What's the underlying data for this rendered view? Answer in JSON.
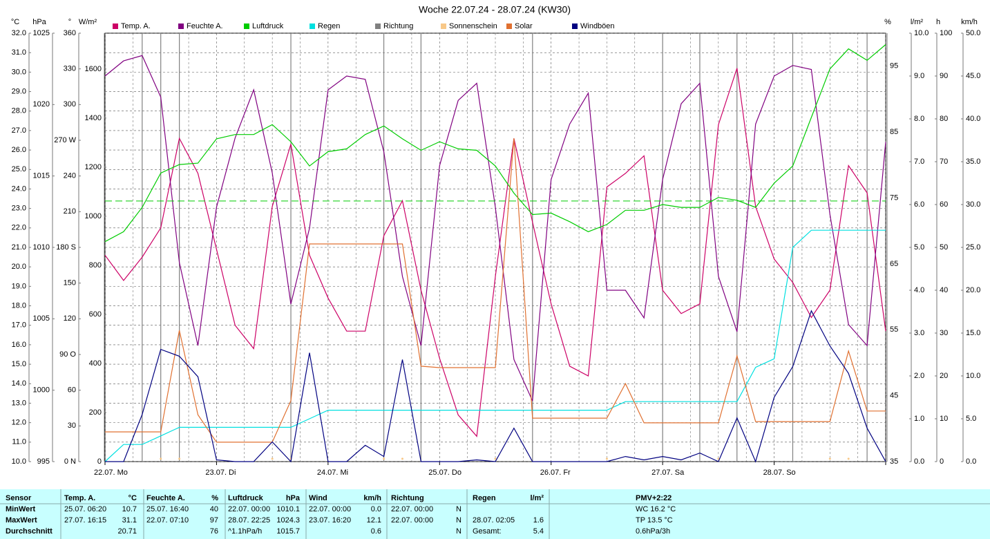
{
  "chart_data": {
    "type": "line",
    "title": "Woche 22.07.24 - 28.07.24 (KW30)",
    "xlim": [
      0,
      168
    ],
    "xticks": [
      {
        "value": 0,
        "label": "22.07. Mo"
      },
      {
        "value": 24,
        "label": "23.07. Di"
      },
      {
        "value": 48,
        "label": "24.07. Mi"
      },
      {
        "value": 72,
        "label": "25.07. Do"
      },
      {
        "value": 96,
        "label": "26.07. Fr"
      },
      {
        "value": 120,
        "label": "27.07. Sa"
      },
      {
        "value": 144,
        "label": "28.07. So"
      },
      168
    ],
    "x": [
      0,
      4,
      8,
      12,
      16,
      20,
      24,
      28,
      32,
      36,
      40,
      44,
      48,
      52,
      56,
      60,
      64,
      68,
      72,
      76,
      80,
      84,
      88,
      92,
      96,
      100,
      104,
      108,
      112,
      116,
      120,
      124,
      128,
      132,
      136,
      140,
      144,
      148,
      152,
      156,
      160,
      164,
      168
    ],
    "grid": true,
    "axes": {
      "temp": {
        "unit": "°C",
        "color": "#cc0066",
        "lim": [
          10,
          32
        ],
        "ticks": [
          {
            "value": 10,
            "label": "10.0"
          },
          {
            "value": 11,
            "label": "11.0"
          },
          {
            "value": 12,
            "label": "12.0"
          },
          {
            "value": 13,
            "label": "13.0"
          },
          {
            "value": 14,
            "label": "14.0"
          },
          {
            "value": 15,
            "label": "15.0"
          },
          {
            "value": 16,
            "label": "16.0"
          },
          {
            "value": 17,
            "label": "17.0"
          },
          {
            "value": 18,
            "label": "18.0"
          },
          {
            "value": 19,
            "label": "19.0"
          },
          {
            "value": 20,
            "label": "20.0"
          },
          {
            "value": 21,
            "label": "21.0"
          },
          {
            "value": 22,
            "label": "22.0"
          },
          {
            "value": 23,
            "label": "23.0"
          },
          {
            "value": 24,
            "label": "24.0"
          },
          {
            "value": 25,
            "label": "25.0"
          },
          {
            "value": 26,
            "label": "26.0"
          },
          {
            "value": 27,
            "label": "27.0"
          },
          {
            "value": 28,
            "label": "28.0"
          },
          {
            "value": 29,
            "label": "29.0"
          },
          {
            "value": 30,
            "label": "30.0"
          },
          {
            "value": 31,
            "label": "31.0"
          },
          {
            "value": 32,
            "label": "32.0"
          }
        ]
      },
      "pressure": {
        "unit": "hPa",
        "color": "#00a800",
        "lim": [
          995,
          1025
        ],
        "ticks": [
          995,
          1000,
          1005,
          1010,
          1015,
          1020,
          1025
        ]
      },
      "direction": {
        "unit": "°",
        "color": "#555555",
        "lim": [
          0,
          360
        ],
        "ticks": [
          {
            "value": 0,
            "label": "0 N"
          },
          30,
          60,
          {
            "value": 90,
            "label": "90 O"
          },
          120,
          150,
          {
            "value": 180,
            "label": "180 S"
          },
          210,
          240,
          {
            "value": 270,
            "label": "270 W"
          },
          300,
          330,
          360
        ]
      },
      "solar": {
        "unit": "W/m²",
        "color": "#e07030",
        "lim": [
          0,
          1746
        ],
        "ticks": [
          0,
          200,
          400,
          600,
          800,
          1000,
          1200,
          1400,
          1600
        ]
      },
      "humidity": {
        "unit": "%",
        "color": "#800080",
        "lim": [
          35,
          100
        ],
        "ticks": [
          35,
          45,
          55,
          65,
          75,
          85,
          95
        ]
      },
      "rain": {
        "unit": "l/m²",
        "color": "#00c8c8",
        "lim": [
          0,
          10
        ],
        "ticks": [
          {
            "value": 0,
            "label": "0.0"
          },
          {
            "value": 1,
            "label": "1.0"
          },
          {
            "value": 2,
            "label": "2.0"
          },
          {
            "value": 3,
            "label": "3.0"
          },
          {
            "value": 4,
            "label": "4.0"
          },
          {
            "value": 5,
            "label": "5.0"
          },
          {
            "value": 6,
            "label": "6.0"
          },
          {
            "value": 7,
            "label": "7.0"
          },
          {
            "value": 8,
            "label": "8.0"
          },
          {
            "value": 9,
            "label": "9.0"
          },
          {
            "value": 10,
            "label": "10.0"
          }
        ]
      },
      "sun": {
        "unit": "h",
        "color": "#f8c888",
        "lim": [
          0,
          100
        ],
        "ticks": [
          0,
          10,
          20,
          30,
          40,
          50,
          60,
          70,
          80,
          90,
          100
        ]
      },
      "wind": {
        "unit": "km/h",
        "color": "#000080",
        "lim": [
          0,
          50
        ],
        "ticks": [
          {
            "value": 0,
            "label": "0.0"
          },
          {
            "value": 5,
            "label": "5.0"
          },
          {
            "value": 10,
            "label": "10.0"
          },
          {
            "value": 15,
            "label": "15.0"
          },
          {
            "value": 20,
            "label": "20.0"
          },
          {
            "value": 25,
            "label": "25.0"
          },
          {
            "value": 30,
            "label": "30.0"
          },
          {
            "value": 35,
            "label": "35.0"
          },
          {
            "value": 40,
            "label": "40.0"
          },
          {
            "value": 45,
            "label": "45.0"
          },
          {
            "value": 50,
            "label": "50.0"
          }
        ]
      }
    },
    "series": [
      {
        "name": "Temp. A.",
        "color": "#cc0066",
        "axis": "temp",
        "style": "line",
        "values": [
          20.6,
          19.3,
          20.5,
          22.0,
          26.6,
          24.8,
          20.9,
          17.0,
          15.8,
          23.1,
          26.3,
          20.6,
          18.4,
          16.7,
          16.7,
          21.6,
          23.4,
          18.8,
          15.3,
          12.4,
          11.3,
          19.5,
          26.6,
          22.3,
          18.1,
          14.9,
          14.4,
          24.1,
          24.8,
          25.7,
          18.8,
          17.6,
          18.1,
          27.3,
          30.2,
          23.1,
          20.4,
          19.2,
          17.4,
          18.8,
          25.2,
          23.8,
          16.7
        ]
      },
      {
        "name": "Feuchte A.",
        "color": "#800080",
        "axis": "humidity",
        "style": "line",
        "values": [
          93.5,
          95.8,
          96.6,
          90.3,
          65.2,
          52.6,
          73.6,
          84.1,
          91.4,
          78.8,
          58.9,
          70.4,
          91.4,
          93.5,
          93.0,
          82.0,
          63.1,
          52.6,
          79.9,
          89.8,
          92.4,
          73.6,
          50.5,
          44.2,
          77.8,
          86.2,
          90.9,
          61.0,
          61.0,
          56.8,
          77.8,
          89.3,
          92.4,
          63.1,
          54.7,
          86.2,
          93.5,
          95.1,
          94.5,
          72.5,
          55.8,
          52.6,
          83.5
        ]
      },
      {
        "name": "Luftdruck",
        "color": "#00cc00",
        "axis": "pressure",
        "style": "line",
        "reference": 1013.25,
        "values": [
          1010.4,
          1011.1,
          1012.8,
          1015.2,
          1015.8,
          1015.9,
          1017.6,
          1017.9,
          1017.9,
          1018.6,
          1017.4,
          1015.7,
          1016.7,
          1016.9,
          1017.9,
          1018.5,
          1017.6,
          1016.8,
          1017.4,
          1016.9,
          1016.8,
          1015.7,
          1013.8,
          1012.3,
          1012.4,
          1011.8,
          1011.1,
          1011.6,
          1012.6,
          1012.6,
          1013.0,
          1012.8,
          1012.8,
          1013.5,
          1013.3,
          1012.8,
          1014.5,
          1015.7,
          1019.1,
          1022.5,
          1023.9,
          1023.1,
          1024.2
        ]
      },
      {
        "name": "Regen",
        "color": "#00e0e0",
        "axis": "rain",
        "style": "line",
        "values": [
          0,
          0.4,
          0.4,
          0.6,
          0.8,
          0.8,
          0.8,
          0.8,
          0.8,
          0.8,
          0.8,
          1.0,
          1.2,
          1.2,
          1.2,
          1.2,
          1.2,
          1.2,
          1.2,
          1.2,
          1.2,
          1.2,
          1.2,
          1.2,
          1.2,
          1.2,
          1.2,
          1.2,
          1.4,
          1.4,
          1.4,
          1.4,
          1.4,
          1.4,
          1.4,
          2.2,
          2.4,
          5.0,
          5.4,
          5.4,
          5.4,
          5.4,
          5.4
        ]
      },
      {
        "name": "Richtung",
        "color": "#808080",
        "axis": "direction",
        "style": "bars",
        "values": [
          0,
          0,
          360,
          360,
          360,
          0,
          0,
          0,
          0,
          0,
          360,
          0,
          0,
          0,
          0,
          360,
          0,
          360,
          0,
          0,
          0,
          0,
          0,
          360,
          0,
          0,
          0,
          0,
          0,
          0,
          360,
          0,
          360,
          0,
          360,
          0,
          0,
          360,
          0,
          0,
          0,
          360,
          0
        ]
      },
      {
        "name": "Sonnenschein",
        "color": "#f8c888",
        "axis": "sun",
        "style": "dots",
        "values": [
          0,
          0,
          0,
          0.5,
          0.5,
          0,
          0,
          0,
          0,
          0.5,
          0.5,
          0,
          0,
          0,
          0,
          0.5,
          0.5,
          0,
          0,
          0,
          0,
          0.5,
          0,
          0,
          0,
          0,
          0,
          0.5,
          0,
          0,
          0,
          0,
          0,
          0.5,
          0,
          0,
          0,
          0,
          0,
          0.5,
          0.5,
          0,
          0
        ]
      },
      {
        "name": "Solar",
        "color": "#e07030",
        "axis": "solar",
        "style": "line",
        "values": [
          121,
          121,
          121,
          121,
          535,
          191,
          79,
          79,
          79,
          79,
          248,
          887,
          887,
          887,
          887,
          887,
          887,
          389,
          383,
          383,
          383,
          383,
          1318,
          177,
          177,
          177,
          177,
          177,
          318,
          158,
          158,
          158,
          158,
          158,
          431,
          163,
          163,
          163,
          163,
          163,
          451,
          206,
          206
        ]
      },
      {
        "name": "Windböen",
        "color": "#000080",
        "axis": "wind",
        "style": "line",
        "values": [
          0,
          0,
          5.5,
          13.1,
          12.3,
          9.9,
          0.2,
          0,
          0,
          2.3,
          0,
          12.7,
          0,
          0,
          1.9,
          0.6,
          11.9,
          0,
          0,
          0,
          0.2,
          0,
          3.9,
          0,
          0,
          0,
          0,
          0,
          0.6,
          0.2,
          0.6,
          0.2,
          1.0,
          0,
          5.1,
          0,
          7.5,
          11.1,
          17.6,
          13.5,
          10.3,
          3.9,
          0
        ]
      }
    ]
  },
  "table": {
    "columns": [
      {
        "title": "Sensor"
      },
      {
        "title": "Temp. A.",
        "unit": "°C"
      },
      {
        "title": "Feuchte A.",
        "unit": "%"
      },
      {
        "title": "Luftdruck",
        "unit": "hPa"
      },
      {
        "title": "Wind",
        "unit": "km/h"
      },
      {
        "title": "Richtung"
      },
      {
        "title": "Regen",
        "unit": "l/m²"
      },
      {
        "title": "PMV+2:22"
      }
    ],
    "rows": [
      {
        "label": "MinWert",
        "cells": [
          [
            "25.07. 06:20",
            "10.7"
          ],
          [
            "25.07. 16:40",
            "40"
          ],
          [
            "22.07. 00:00",
            "1010.1"
          ],
          [
            "22.07. 00:00",
            "0.0"
          ],
          [
            "22.07. 00:00",
            "N"
          ],
          [
            null,
            null
          ],
          "WC 16.2 °C"
        ]
      },
      {
        "label": "MaxWert",
        "cells": [
          [
            "27.07. 16:15",
            "31.1"
          ],
          [
            "22.07. 07:10",
            "97"
          ],
          [
            "28.07. 22:25",
            "1024.3"
          ],
          [
            "23.07. 16:20",
            "12.1"
          ],
          [
            "22.07. 00:00",
            "N"
          ],
          [
            "28.07. 02:05",
            "1.6"
          ],
          "TP 13.5 °C"
        ]
      },
      {
        "label": "Durchschnitt",
        "cells": [
          [
            null,
            "20.71"
          ],
          [
            null,
            "76"
          ],
          [
            "^1.1hPa/h",
            "1015.7"
          ],
          [
            null,
            "0.6"
          ],
          [
            null,
            "N"
          ],
          [
            "Gesamt:",
            "5.4"
          ],
          "0.6hPa/3h"
        ]
      }
    ]
  }
}
